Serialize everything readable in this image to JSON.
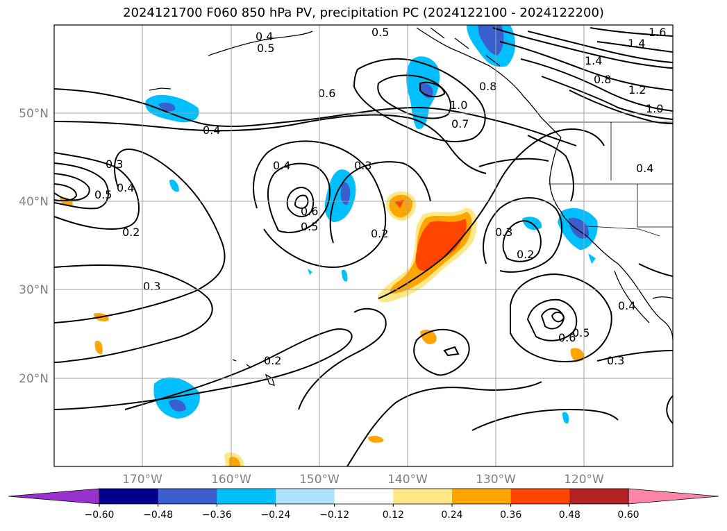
{
  "title": "2024121700 F060 850 hPa PV, precipitation PC (2024122100 - 2024122200)",
  "lat_labels": [
    "50°N",
    "40°N",
    "30°N",
    "20°N"
  ],
  "lon_labels": [
    "170°W",
    "160°W",
    "150°W",
    "140°W",
    "130°W",
    "120°W"
  ],
  "contour_labels": [
    "0.4",
    "0.5",
    "0.5",
    "0.4",
    "0.6",
    "0.7",
    "1.0",
    "0.8",
    "1.4",
    "1.2",
    "1.0",
    "1.4",
    "1.6",
    "0.3",
    "0.5",
    "0.4",
    "0.2",
    "0.4",
    "0.6",
    "0.5",
    "0.3",
    "0.2",
    "0.3",
    "0.2",
    "0.4",
    "0.3",
    "0.2",
    "0.6",
    "0.5",
    "0.4",
    "0.3",
    "0.8"
  ],
  "colorbar": {
    "ticks": [
      "−0.60",
      "−0.48",
      "−0.36",
      "−0.24",
      "−0.12",
      "0.12",
      "0.24",
      "0.36",
      "0.48",
      "0.60"
    ],
    "colors": [
      "#9932cc",
      "#00008b",
      "#3a5fcd",
      "#00bfff",
      "#afe1fa",
      "#ffffff",
      "#fee885",
      "#ffa500",
      "#ff4500",
      "#b22222",
      "#ff85a8"
    ]
  }
}
